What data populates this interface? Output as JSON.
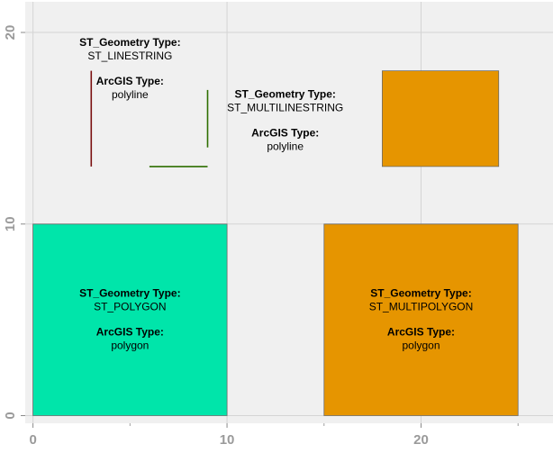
{
  "chart_data": {
    "type": "scatter",
    "title": "",
    "xlabel": "",
    "ylabel": "",
    "xlim": [
      -0.4,
      26.8
    ],
    "ylim": [
      -0.4,
      21.6
    ],
    "x_ticks": [
      0,
      10,
      20
    ],
    "y_ticks": [
      0,
      10,
      20
    ],
    "x_tick_labels": [
      "0",
      "10",
      "20"
    ],
    "y_tick_labels": [
      "0",
      "10",
      "20"
    ],
    "grid": true,
    "legend": "none",
    "colors": {
      "panel_background": "#f0f0f0",
      "grid_line": "#d4d4d4",
      "polygon_fill": "#00e5aa",
      "multipolygon_fill": "#e69500",
      "line_dark_red": "#7a0f0f",
      "line_green": "#2e6e00"
    },
    "features": [
      {
        "kind": "polygon",
        "name": "st-polygon",
        "x": [
          0,
          10,
          10,
          0
        ],
        "y": [
          0,
          0,
          10,
          10
        ],
        "color": "#00e5aa"
      },
      {
        "kind": "polygon",
        "name": "st-multipolygon-part-1",
        "x": [
          15,
          25,
          25,
          15
        ],
        "y": [
          0,
          0,
          10,
          10
        ],
        "color": "#e69500"
      },
      {
        "kind": "polygon",
        "name": "st-multipolygon-part-2",
        "x": [
          18,
          24,
          24,
          18
        ],
        "y": [
          13,
          13,
          18,
          18
        ],
        "color": "#e69500"
      },
      {
        "kind": "line",
        "name": "st-linestring",
        "x": [
          3,
          3
        ],
        "y": [
          13,
          18
        ],
        "color": "#7a0f0f"
      },
      {
        "kind": "line",
        "name": "st-multilinestring-part-1",
        "x": [
          6,
          9
        ],
        "y": [
          13,
          13
        ],
        "color": "#2e6e00"
      },
      {
        "kind": "line",
        "name": "st-multilinestring-part-2",
        "x": [
          9,
          9
        ],
        "y": [
          14,
          17
        ],
        "color": "#2e6e00"
      }
    ],
    "annotations": [
      {
        "name": "annotation-linestring",
        "x": 5,
        "y": 19.3,
        "lines": [
          "ST_Geometry Type:",
          "ST_LINESTRING",
          "ArcGIS Type:",
          "polyline"
        ]
      },
      {
        "name": "annotation-multilinestring",
        "x": 13,
        "y": 16.6,
        "lines": [
          "ST_Geometry Type:",
          "ST_MULTILINESTRING",
          "ArcGIS Type:",
          "polyline"
        ]
      },
      {
        "name": "annotation-polygon",
        "x": 5,
        "y": 6.2,
        "lines": [
          "ST_Geometry Type:",
          "ST_POLYGON",
          "ArcGIS Type:",
          "polygon"
        ]
      },
      {
        "name": "annotation-multipolygon",
        "x": 20,
        "y": 6.2,
        "lines": [
          "ST_Geometry Type:",
          "ST_MULTIPOLYGON",
          "ArcGIS Type:",
          "polygon"
        ]
      }
    ]
  }
}
